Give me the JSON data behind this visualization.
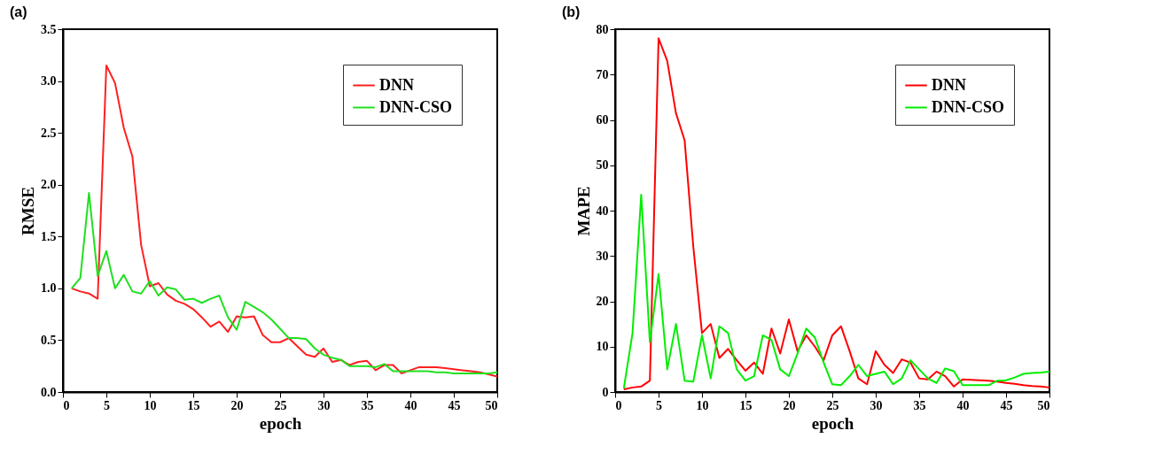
{
  "chart_data": [
    {
      "type": "line",
      "title": "(a)",
      "xlabel": "epoch",
      "ylabel": "RMSE",
      "legend": "top right",
      "grid": false,
      "x": [
        1,
        2,
        3,
        4,
        5,
        6,
        7,
        8,
        9,
        10,
        11,
        12,
        13,
        14,
        15,
        16,
        17,
        18,
        19,
        20,
        21,
        22,
        23,
        24,
        25,
        26,
        27,
        28,
        29,
        30,
        31,
        32,
        33,
        34,
        35,
        36,
        37,
        38,
        39,
        40,
        41,
        42,
        43,
        44,
        45,
        46,
        47,
        48,
        49,
        50
      ],
      "xlim": [
        0,
        50
      ],
      "xticks": [
        0,
        5,
        10,
        15,
        20,
        25,
        30,
        35,
        40,
        45,
        50
      ],
      "ylim": [
        0,
        3.5
      ],
      "yticks": [
        {
          "value": 0,
          "label": "0.0"
        },
        {
          "value": 0.5,
          "label": "0.5"
        },
        {
          "value": 1,
          "label": "1.0"
        },
        {
          "value": 1.5,
          "label": "1.5"
        },
        {
          "value": 2,
          "label": "2.0"
        },
        {
          "value": 2.5,
          "label": "2.5"
        },
        {
          "value": 3,
          "label": "3.0"
        },
        {
          "value": 3.5,
          "label": "3.5"
        }
      ],
      "series": [
        {
          "name": "DNN",
          "color": "#ff2020",
          "values": [
            1.0,
            0.97,
            0.95,
            0.9,
            3.15,
            2.98,
            2.55,
            2.27,
            1.42,
            1.02,
            1.05,
            0.94,
            0.88,
            0.85,
            0.8,
            0.72,
            0.63,
            0.68,
            0.58,
            0.73,
            0.72,
            0.73,
            0.55,
            0.48,
            0.48,
            0.52,
            0.44,
            0.36,
            0.34,
            0.42,
            0.29,
            0.31,
            0.26,
            0.29,
            0.3,
            0.21,
            0.26,
            0.26,
            0.18,
            0.21,
            0.24,
            0.24,
            0.24,
            0.23,
            0.22,
            0.21,
            0.2,
            0.19,
            0.17,
            0.15
          ]
        },
        {
          "name": "DNN-CSO",
          "color": "#20e020",
          "values": [
            1.0,
            1.1,
            1.92,
            1.12,
            1.36,
            1.0,
            1.13,
            0.97,
            0.95,
            1.07,
            0.93,
            1.01,
            0.99,
            0.89,
            0.9,
            0.86,
            0.9,
            0.93,
            0.72,
            0.6,
            0.87,
            0.82,
            0.77,
            0.7,
            0.61,
            0.52,
            0.52,
            0.51,
            0.42,
            0.36,
            0.33,
            0.31,
            0.25,
            0.25,
            0.25,
            0.24,
            0.27,
            0.2,
            0.2,
            0.2,
            0.2,
            0.2,
            0.19,
            0.19,
            0.18,
            0.18,
            0.18,
            0.18,
            0.18,
            0.19
          ]
        }
      ]
    },
    {
      "type": "line",
      "title": "(b)",
      "xlabel": "epoch",
      "ylabel": "MAPE",
      "legend": "top right",
      "grid": false,
      "x": [
        1,
        2,
        3,
        4,
        5,
        6,
        7,
        8,
        9,
        10,
        11,
        12,
        13,
        14,
        15,
        16,
        17,
        18,
        19,
        20,
        21,
        22,
        23,
        24,
        25,
        26,
        27,
        28,
        29,
        30,
        31,
        32,
        33,
        34,
        35,
        36,
        37,
        38,
        39,
        40,
        41,
        42,
        43,
        44,
        45,
        46,
        47,
        48,
        49,
        50
      ],
      "xlim": [
        0,
        50
      ],
      "xticks": [
        0,
        5,
        10,
        15,
        20,
        25,
        30,
        35,
        40,
        45,
        50
      ],
      "ylim": [
        0,
        80
      ],
      "yticks": [
        0,
        10,
        20,
        30,
        40,
        50,
        60,
        70,
        80
      ],
      "series": [
        {
          "name": "DNN",
          "color": "#ff0000",
          "values": [
            0.6,
            1.0,
            1.2,
            2.5,
            78,
            73,
            61.5,
            55.5,
            32,
            13,
            15,
            7.5,
            9.5,
            7,
            4.7,
            6.5,
            4,
            14,
            8.5,
            16,
            9,
            12.5,
            10,
            7,
            12.5,
            14.5,
            9,
            3,
            1.7,
            9,
            6,
            4.2,
            7.2,
            6.5,
            3,
            2.8,
            4.5,
            3.5,
            1.2,
            2.8,
            2.7,
            2.6,
            2.5,
            2.3,
            2,
            1.8,
            1.5,
            1.3,
            1.2,
            1.0
          ]
        },
        {
          "name": "DNN-CSO",
          "color": "#00ee00",
          "values": [
            0.8,
            13,
            43.5,
            11,
            26,
            5,
            15,
            2.5,
            2.3,
            12.5,
            3,
            14.5,
            13,
            5,
            2.5,
            3.5,
            12.5,
            11.5,
            5,
            3.5,
            8.5,
            14,
            12,
            6.5,
            1.7,
            1.5,
            3.5,
            6,
            3.5,
            4,
            4.5,
            1.7,
            3,
            7,
            5,
            3,
            2,
            5.2,
            4.6,
            1.5,
            1.5,
            1.5,
            1.5,
            2.5,
            2.6,
            3.2,
            4,
            4.2,
            4.3,
            4.5
          ]
        }
      ]
    }
  ]
}
